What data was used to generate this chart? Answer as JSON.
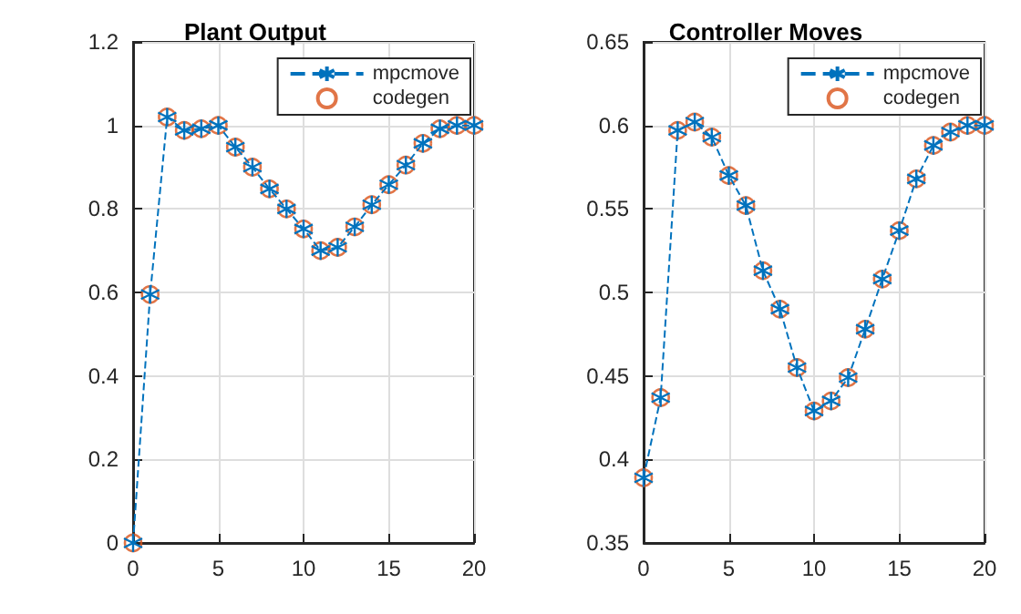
{
  "chart_data": [
    {
      "type": "line",
      "title": "Plant Output",
      "x": [
        0,
        1,
        2,
        3,
        4,
        5,
        6,
        7,
        8,
        9,
        10,
        11,
        12,
        13,
        14,
        15,
        16,
        17,
        18,
        19,
        20
      ],
      "xlim": [
        0,
        20
      ],
      "xticks": [
        0,
        5,
        10,
        15,
        20
      ],
      "ylim": [
        0,
        1.2
      ],
      "yticks": [
        0,
        0.2,
        0.4,
        0.6,
        0.8,
        1,
        1.2
      ],
      "grid": true,
      "legend": "top right",
      "series": [
        {
          "name": "mpcmove",
          "color": "#0072bd",
          "marker": "star",
          "line_style": "dashed",
          "values": [
            0,
            0.595,
            1.02,
            0.988,
            0.992,
            1.0,
            0.948,
            0.9,
            0.848,
            0.8,
            0.752,
            0.7,
            0.708,
            0.757,
            0.81,
            0.858,
            0.905,
            0.957,
            0.992,
            1.0,
            1.0
          ]
        },
        {
          "name": "codegen",
          "type": "scatter",
          "color": "#d95319",
          "marker": "circle",
          "values": [
            0,
            0.595,
            1.02,
            0.988,
            0.992,
            1.0,
            0.948,
            0.9,
            0.848,
            0.8,
            0.752,
            0.7,
            0.708,
            0.757,
            0.81,
            0.858,
            0.905,
            0.957,
            0.992,
            1.0,
            1.0
          ]
        }
      ]
    },
    {
      "type": "line",
      "title": "Controller Moves",
      "x": [
        0,
        1,
        2,
        3,
        4,
        5,
        6,
        7,
        8,
        9,
        10,
        11,
        12,
        13,
        14,
        15,
        16,
        17,
        18,
        19,
        20
      ],
      "xlim": [
        0,
        20
      ],
      "xticks": [
        0,
        5,
        10,
        15,
        20
      ],
      "ylim": [
        0.35,
        0.65
      ],
      "yticks": [
        0.35,
        0.4,
        0.45,
        0.5,
        0.55,
        0.6,
        0.65
      ],
      "grid": true,
      "legend": "top right",
      "series": [
        {
          "name": "mpcmove",
          "color": "#0072bd",
          "marker": "star",
          "line_style": "dashed",
          "values": [
            0.389,
            0.437,
            0.597,
            0.602,
            0.593,
            0.57,
            0.552,
            0.513,
            0.49,
            0.455,
            0.429,
            0.435,
            0.449,
            0.478,
            0.508,
            0.537,
            0.568,
            0.588,
            0.596,
            0.6,
            0.6
          ]
        },
        {
          "name": "codegen",
          "type": "scatter",
          "color": "#d95319",
          "marker": "circle",
          "values": [
            0.389,
            0.437,
            0.597,
            0.602,
            0.593,
            0.57,
            0.552,
            0.513,
            0.49,
            0.455,
            0.429,
            0.435,
            0.449,
            0.478,
            0.508,
            0.537,
            0.568,
            0.588,
            0.596,
            0.6,
            0.6
          ]
        }
      ]
    }
  ]
}
